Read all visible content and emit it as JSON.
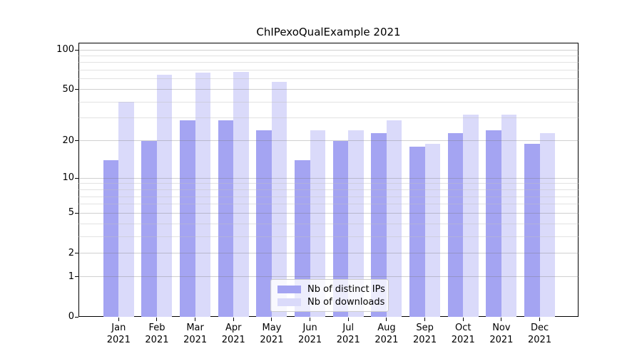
{
  "title": "ChIPexoQualExample 2021",
  "chart_data": {
    "type": "bar",
    "title": "ChIPexoQualExample 2021",
    "categories": [
      "Jan 2021",
      "Feb 2021",
      "Mar 2021",
      "Apr 2021",
      "May 2021",
      "Jun 2021",
      "Jul 2021",
      "Aug 2021",
      "Sep 2021",
      "Oct 2021",
      "Nov 2021",
      "Dec 2021"
    ],
    "series": [
      {
        "name": "Nb of distinct IPs",
        "color": "#a4a4f2",
        "values": [
          14,
          20,
          29,
          29,
          24,
          14,
          20,
          23,
          18,
          23,
          24,
          19
        ]
      },
      {
        "name": "Nb of downloads",
        "color": "#dadafa",
        "values": [
          40,
          65,
          67,
          68,
          57,
          24,
          24,
          29,
          19,
          32,
          32,
          23
        ]
      }
    ],
    "xlabel": "",
    "ylabel": "",
    "y_axis": {
      "scale": "log1p",
      "major_ticks": [
        0,
        1,
        2,
        5,
        10,
        20,
        50,
        100
      ],
      "minor_gridlines": [
        3,
        4,
        6,
        7,
        8,
        9,
        30,
        40,
        60,
        70,
        80,
        90
      ],
      "ylim": [
        0,
        110
      ]
    },
    "grid": true,
    "legend_position": "lower center inside"
  },
  "colors": {
    "distinct_ips": "#a4a4f2",
    "downloads": "#dadafa",
    "grid_major": "rgba(120,120,120,0.35)",
    "grid_minor": "rgba(190,190,190,0.45)",
    "spine": "#000000",
    "background": "#ffffff",
    "legend_border": "#cccccc"
  }
}
